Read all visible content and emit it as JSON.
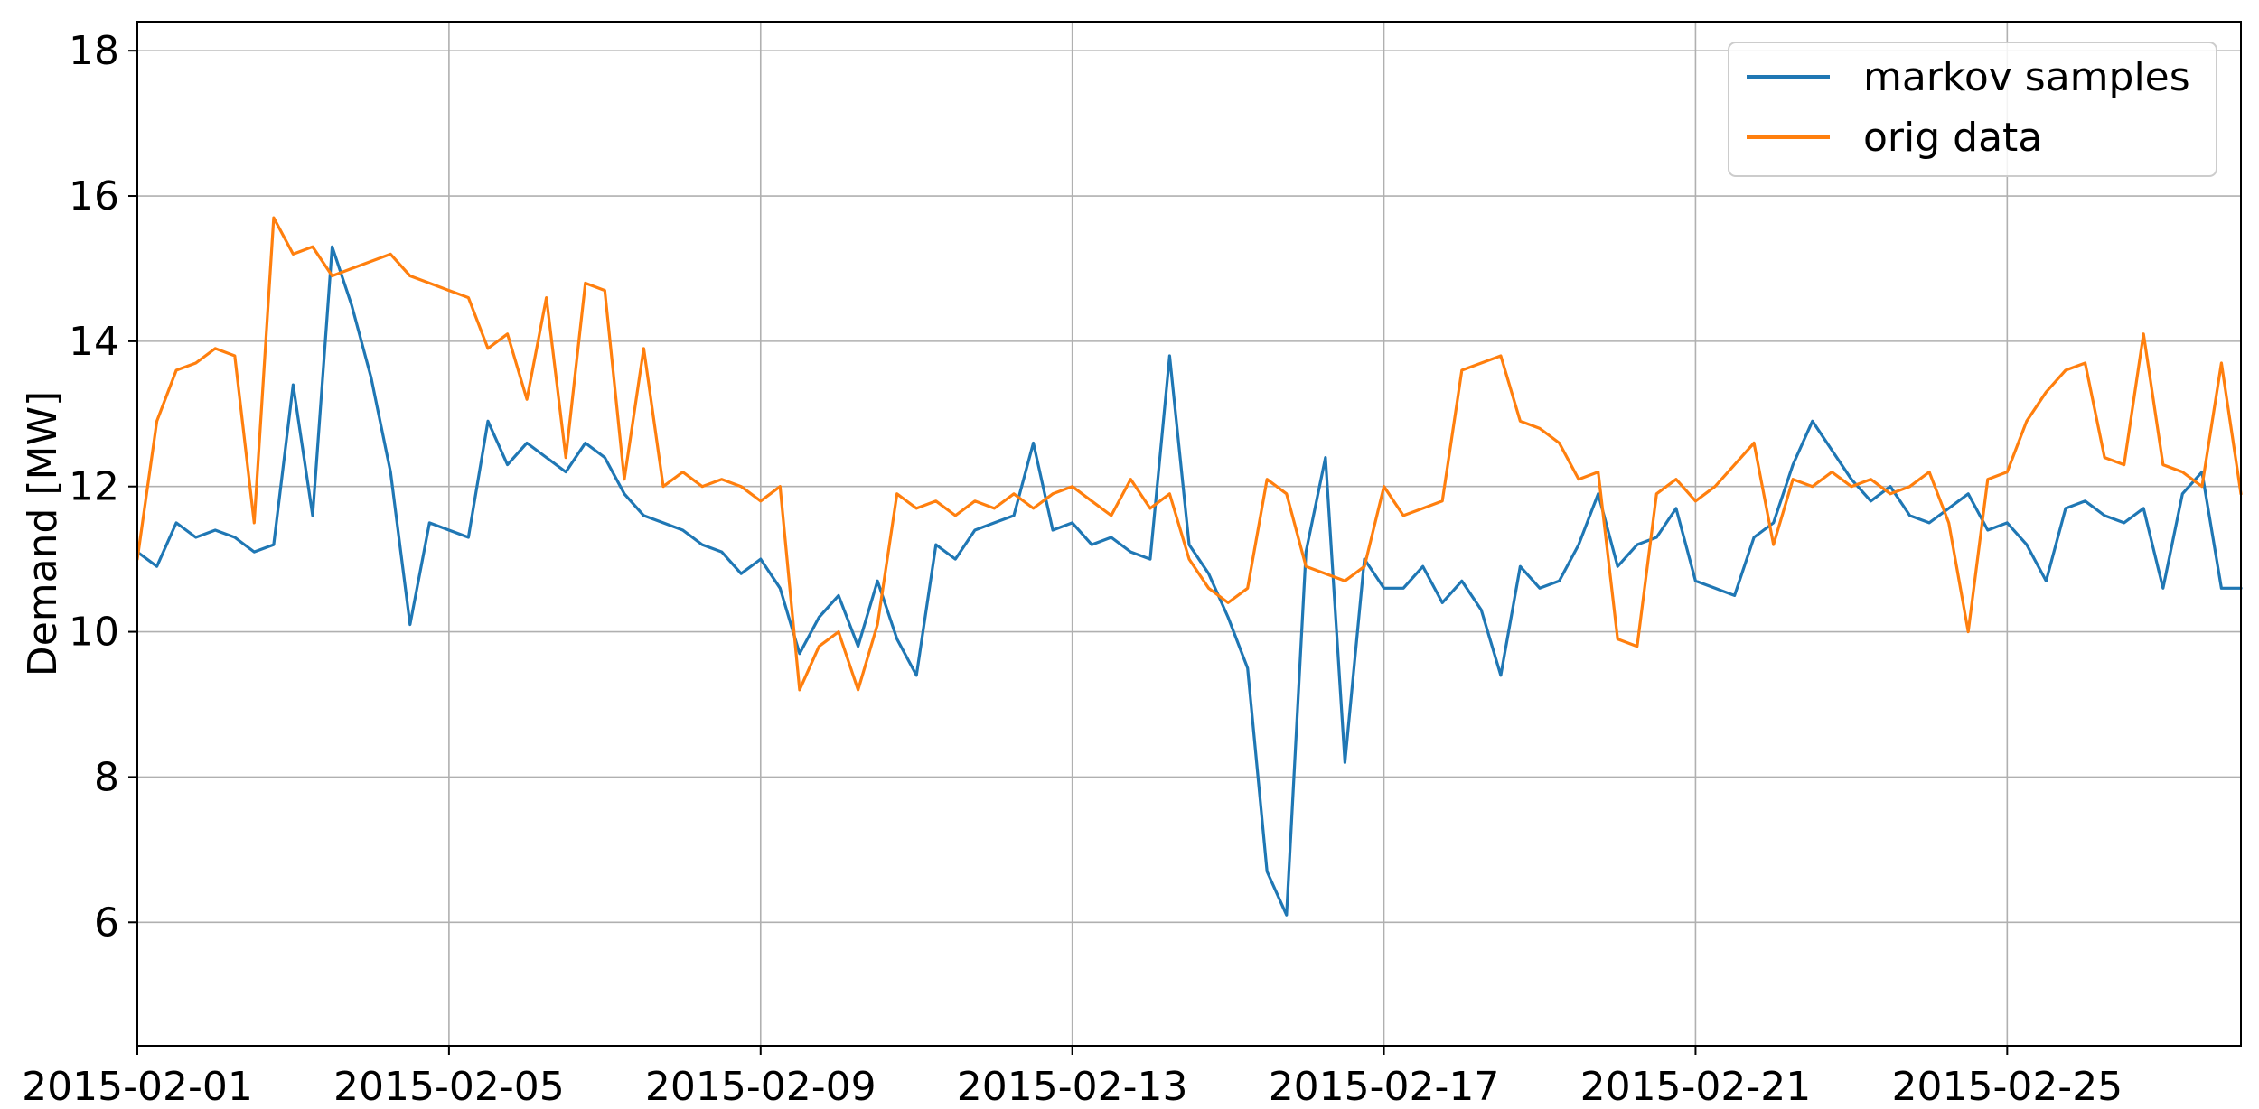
{
  "chart_data": {
    "type": "line",
    "title": "",
    "xlabel": "",
    "ylabel": "Demand [MW]",
    "xlim": [
      "2015-02-01",
      "2015-02-28"
    ],
    "ylim": [
      4.3,
      18.4
    ],
    "grid": true,
    "legend_position": "top-right",
    "x_ticks": [
      "2015-02-01",
      "2015-02-05",
      "2015-02-09",
      "2015-02-13",
      "2015-02-17",
      "2015-02-21",
      "2015-02-25"
    ],
    "y_ticks": [
      6,
      8,
      10,
      12,
      14,
      16,
      18
    ],
    "series": [
      {
        "name": "markov samples",
        "color": "#1f77b4",
        "points": [
          [
            "2015-02-01 00:00",
            11.1
          ],
          [
            "2015-02-01 06:00",
            10.9
          ],
          [
            "2015-02-01 12:00",
            11.5
          ],
          [
            "2015-02-01 18:00",
            11.3
          ],
          [
            "2015-02-02 00:00",
            11.4
          ],
          [
            "2015-02-02 06:00",
            11.3
          ],
          [
            "2015-02-02 12:00",
            11.1
          ],
          [
            "2015-02-02 18:00",
            11.2
          ],
          [
            "2015-02-03 00:00",
            13.4
          ],
          [
            "2015-02-03 06:00",
            11.6
          ],
          [
            "2015-02-03 12:00",
            15.3
          ],
          [
            "2015-02-03 18:00",
            14.5
          ],
          [
            "2015-02-04 00:00",
            13.5
          ],
          [
            "2015-02-04 06:00",
            12.2
          ],
          [
            "2015-02-04 12:00",
            10.1
          ],
          [
            "2015-02-04 18:00",
            11.5
          ],
          [
            "2015-02-05 00:00",
            11.4
          ],
          [
            "2015-02-05 06:00",
            11.3
          ],
          [
            "2015-02-05 12:00",
            12.9
          ],
          [
            "2015-02-05 18:00",
            12.3
          ],
          [
            "2015-02-06 00:00",
            12.6
          ],
          [
            "2015-02-06 06:00",
            12.4
          ],
          [
            "2015-02-06 12:00",
            12.2
          ],
          [
            "2015-02-06 18:00",
            12.6
          ],
          [
            "2015-02-07 00:00",
            12.4
          ],
          [
            "2015-02-07 06:00",
            11.9
          ],
          [
            "2015-02-07 12:00",
            11.6
          ],
          [
            "2015-02-07 18:00",
            11.5
          ],
          [
            "2015-02-08 00:00",
            11.4
          ],
          [
            "2015-02-08 06:00",
            11.2
          ],
          [
            "2015-02-08 12:00",
            11.1
          ],
          [
            "2015-02-08 18:00",
            10.8
          ],
          [
            "2015-02-09 00:00",
            11.0
          ],
          [
            "2015-02-09 06:00",
            10.6
          ],
          [
            "2015-02-09 12:00",
            9.7
          ],
          [
            "2015-02-09 18:00",
            10.2
          ],
          [
            "2015-02-10 00:00",
            10.5
          ],
          [
            "2015-02-10 06:00",
            9.8
          ],
          [
            "2015-02-10 12:00",
            10.7
          ],
          [
            "2015-02-10 18:00",
            9.9
          ],
          [
            "2015-02-11 00:00",
            9.4
          ],
          [
            "2015-02-11 06:00",
            11.2
          ],
          [
            "2015-02-11 12:00",
            11.0
          ],
          [
            "2015-02-11 18:00",
            11.4
          ],
          [
            "2015-02-12 00:00",
            11.5
          ],
          [
            "2015-02-12 06:00",
            11.6
          ],
          [
            "2015-02-12 12:00",
            12.6
          ],
          [
            "2015-02-12 18:00",
            11.4
          ],
          [
            "2015-02-13 00:00",
            11.5
          ],
          [
            "2015-02-13 06:00",
            11.2
          ],
          [
            "2015-02-13 12:00",
            11.3
          ],
          [
            "2015-02-13 18:00",
            11.1
          ],
          [
            "2015-02-14 00:00",
            11.0
          ],
          [
            "2015-02-14 06:00",
            13.8
          ],
          [
            "2015-02-14 12:00",
            11.2
          ],
          [
            "2015-02-14 18:00",
            10.8
          ],
          [
            "2015-02-15 00:00",
            10.2
          ],
          [
            "2015-02-15 06:00",
            9.5
          ],
          [
            "2015-02-15 12:00",
            6.7
          ],
          [
            "2015-02-15 18:00",
            6.1
          ],
          [
            "2015-02-16 00:00",
            11.1
          ],
          [
            "2015-02-16 06:00",
            12.4
          ],
          [
            "2015-02-16 12:00",
            8.2
          ],
          [
            "2015-02-16 18:00",
            11.0
          ],
          [
            "2015-02-17 00:00",
            10.6
          ],
          [
            "2015-02-17 06:00",
            10.6
          ],
          [
            "2015-02-17 12:00",
            10.9
          ],
          [
            "2015-02-17 18:00",
            10.4
          ],
          [
            "2015-02-18 00:00",
            10.7
          ],
          [
            "2015-02-18 06:00",
            10.3
          ],
          [
            "2015-02-18 12:00",
            9.4
          ],
          [
            "2015-02-18 18:00",
            10.9
          ],
          [
            "2015-02-19 00:00",
            10.6
          ],
          [
            "2015-02-19 06:00",
            10.7
          ],
          [
            "2015-02-19 12:00",
            11.2
          ],
          [
            "2015-02-19 18:00",
            11.9
          ],
          [
            "2015-02-20 00:00",
            10.9
          ],
          [
            "2015-02-20 06:00",
            11.2
          ],
          [
            "2015-02-20 12:00",
            11.3
          ],
          [
            "2015-02-20 18:00",
            11.7
          ],
          [
            "2015-02-21 00:00",
            10.7
          ],
          [
            "2015-02-21 06:00",
            10.6
          ],
          [
            "2015-02-21 12:00",
            10.5
          ],
          [
            "2015-02-21 18:00",
            11.3
          ],
          [
            "2015-02-22 00:00",
            11.5
          ],
          [
            "2015-02-22 06:00",
            12.3
          ],
          [
            "2015-02-22 12:00",
            12.9
          ],
          [
            "2015-02-22 18:00",
            12.5
          ],
          [
            "2015-02-23 00:00",
            12.1
          ],
          [
            "2015-02-23 06:00",
            11.8
          ],
          [
            "2015-02-23 12:00",
            12.0
          ],
          [
            "2015-02-23 18:00",
            11.6
          ],
          [
            "2015-02-24 00:00",
            11.5
          ],
          [
            "2015-02-24 06:00",
            11.7
          ],
          [
            "2015-02-24 12:00",
            11.9
          ],
          [
            "2015-02-24 18:00",
            11.4
          ],
          [
            "2015-02-25 00:00",
            11.5
          ],
          [
            "2015-02-25 06:00",
            11.2
          ],
          [
            "2015-02-25 12:00",
            10.7
          ],
          [
            "2015-02-25 18:00",
            11.7
          ],
          [
            "2015-02-26 00:00",
            11.8
          ],
          [
            "2015-02-26 06:00",
            11.6
          ],
          [
            "2015-02-26 12:00",
            11.5
          ],
          [
            "2015-02-26 18:00",
            11.7
          ],
          [
            "2015-02-27 00:00",
            10.6
          ],
          [
            "2015-02-27 06:00",
            11.9
          ],
          [
            "2015-02-27 12:00",
            12.2
          ],
          [
            "2015-02-27 18:00",
            10.6
          ],
          [
            "2015-02-28 00:00",
            10.6
          ]
        ]
      },
      {
        "name": "orig data",
        "color": "#ff7f0e",
        "points": [
          [
            "2015-02-01 00:00",
            11.0
          ],
          [
            "2015-02-01 06:00",
            12.9
          ],
          [
            "2015-02-01 12:00",
            13.6
          ],
          [
            "2015-02-01 18:00",
            13.7
          ],
          [
            "2015-02-02 00:00",
            13.9
          ],
          [
            "2015-02-02 06:00",
            13.8
          ],
          [
            "2015-02-02 12:00",
            11.5
          ],
          [
            "2015-02-02 18:00",
            15.7
          ],
          [
            "2015-02-03 00:00",
            15.2
          ],
          [
            "2015-02-03 06:00",
            15.3
          ],
          [
            "2015-02-03 12:00",
            14.9
          ],
          [
            "2015-02-03 18:00",
            15.0
          ],
          [
            "2015-02-04 00:00",
            15.1
          ],
          [
            "2015-02-04 06:00",
            15.2
          ],
          [
            "2015-02-04 12:00",
            14.9
          ],
          [
            "2015-02-04 18:00",
            14.8
          ],
          [
            "2015-02-05 00:00",
            14.7
          ],
          [
            "2015-02-05 06:00",
            14.6
          ],
          [
            "2015-02-05 12:00",
            13.9
          ],
          [
            "2015-02-05 18:00",
            14.1
          ],
          [
            "2015-02-06 00:00",
            13.2
          ],
          [
            "2015-02-06 06:00",
            14.6
          ],
          [
            "2015-02-06 12:00",
            12.4
          ],
          [
            "2015-02-06 18:00",
            14.8
          ],
          [
            "2015-02-07 00:00",
            14.7
          ],
          [
            "2015-02-07 06:00",
            12.1
          ],
          [
            "2015-02-07 12:00",
            13.9
          ],
          [
            "2015-02-07 18:00",
            12.0
          ],
          [
            "2015-02-08 00:00",
            12.2
          ],
          [
            "2015-02-08 06:00",
            12.0
          ],
          [
            "2015-02-08 12:00",
            12.1
          ],
          [
            "2015-02-08 18:00",
            12.0
          ],
          [
            "2015-02-09 00:00",
            11.8
          ],
          [
            "2015-02-09 06:00",
            12.0
          ],
          [
            "2015-02-09 12:00",
            9.2
          ],
          [
            "2015-02-09 18:00",
            9.8
          ],
          [
            "2015-02-10 00:00",
            10.0
          ],
          [
            "2015-02-10 06:00",
            9.2
          ],
          [
            "2015-02-10 12:00",
            10.1
          ],
          [
            "2015-02-10 18:00",
            11.9
          ],
          [
            "2015-02-11 00:00",
            11.7
          ],
          [
            "2015-02-11 06:00",
            11.8
          ],
          [
            "2015-02-11 12:00",
            11.6
          ],
          [
            "2015-02-11 18:00",
            11.8
          ],
          [
            "2015-02-12 00:00",
            11.7
          ],
          [
            "2015-02-12 06:00",
            11.9
          ],
          [
            "2015-02-12 12:00",
            11.7
          ],
          [
            "2015-02-12 18:00",
            11.9
          ],
          [
            "2015-02-13 00:00",
            12.0
          ],
          [
            "2015-02-13 06:00",
            11.8
          ],
          [
            "2015-02-13 12:00",
            11.6
          ],
          [
            "2015-02-13 18:00",
            12.1
          ],
          [
            "2015-02-14 00:00",
            11.7
          ],
          [
            "2015-02-14 06:00",
            11.9
          ],
          [
            "2015-02-14 12:00",
            11.0
          ],
          [
            "2015-02-14 18:00",
            10.6
          ],
          [
            "2015-02-15 00:00",
            10.4
          ],
          [
            "2015-02-15 06:00",
            10.6
          ],
          [
            "2015-02-15 12:00",
            12.1
          ],
          [
            "2015-02-15 18:00",
            11.9
          ],
          [
            "2015-02-16 00:00",
            10.9
          ],
          [
            "2015-02-16 06:00",
            10.8
          ],
          [
            "2015-02-16 12:00",
            10.7
          ],
          [
            "2015-02-16 18:00",
            10.9
          ],
          [
            "2015-02-17 00:00",
            12.0
          ],
          [
            "2015-02-17 06:00",
            11.6
          ],
          [
            "2015-02-17 12:00",
            11.7
          ],
          [
            "2015-02-17 18:00",
            11.8
          ],
          [
            "2015-02-18 00:00",
            13.6
          ],
          [
            "2015-02-18 06:00",
            13.7
          ],
          [
            "2015-02-18 12:00",
            13.8
          ],
          [
            "2015-02-18 18:00",
            12.9
          ],
          [
            "2015-02-19 00:00",
            12.8
          ],
          [
            "2015-02-19 06:00",
            12.6
          ],
          [
            "2015-02-19 12:00",
            12.1
          ],
          [
            "2015-02-19 18:00",
            12.2
          ],
          [
            "2015-02-20 00:00",
            9.9
          ],
          [
            "2015-02-20 06:00",
            9.8
          ],
          [
            "2015-02-20 12:00",
            11.9
          ],
          [
            "2015-02-20 18:00",
            12.1
          ],
          [
            "2015-02-21 00:00",
            11.8
          ],
          [
            "2015-02-21 06:00",
            12.0
          ],
          [
            "2015-02-21 12:00",
            12.3
          ],
          [
            "2015-02-21 18:00",
            12.6
          ],
          [
            "2015-02-22 00:00",
            11.2
          ],
          [
            "2015-02-22 06:00",
            12.1
          ],
          [
            "2015-02-22 12:00",
            12.0
          ],
          [
            "2015-02-22 18:00",
            12.2
          ],
          [
            "2015-02-23 00:00",
            12.0
          ],
          [
            "2015-02-23 06:00",
            12.1
          ],
          [
            "2015-02-23 12:00",
            11.9
          ],
          [
            "2015-02-23 18:00",
            12.0
          ],
          [
            "2015-02-24 00:00",
            12.2
          ],
          [
            "2015-02-24 06:00",
            11.5
          ],
          [
            "2015-02-24 12:00",
            10.0
          ],
          [
            "2015-02-24 18:00",
            12.1
          ],
          [
            "2015-02-25 00:00",
            12.2
          ],
          [
            "2015-02-25 06:00",
            12.9
          ],
          [
            "2015-02-25 12:00",
            13.3
          ],
          [
            "2015-02-25 18:00",
            13.6
          ],
          [
            "2015-02-26 00:00",
            13.7
          ],
          [
            "2015-02-26 06:00",
            12.4
          ],
          [
            "2015-02-26 12:00",
            12.3
          ],
          [
            "2015-02-26 18:00",
            14.1
          ],
          [
            "2015-02-27 00:00",
            12.3
          ],
          [
            "2015-02-27 06:00",
            12.2
          ],
          [
            "2015-02-27 12:00",
            12.0
          ],
          [
            "2015-02-27 18:00",
            13.7
          ],
          [
            "2015-02-28 00:00",
            11.9
          ]
        ]
      }
    ]
  }
}
